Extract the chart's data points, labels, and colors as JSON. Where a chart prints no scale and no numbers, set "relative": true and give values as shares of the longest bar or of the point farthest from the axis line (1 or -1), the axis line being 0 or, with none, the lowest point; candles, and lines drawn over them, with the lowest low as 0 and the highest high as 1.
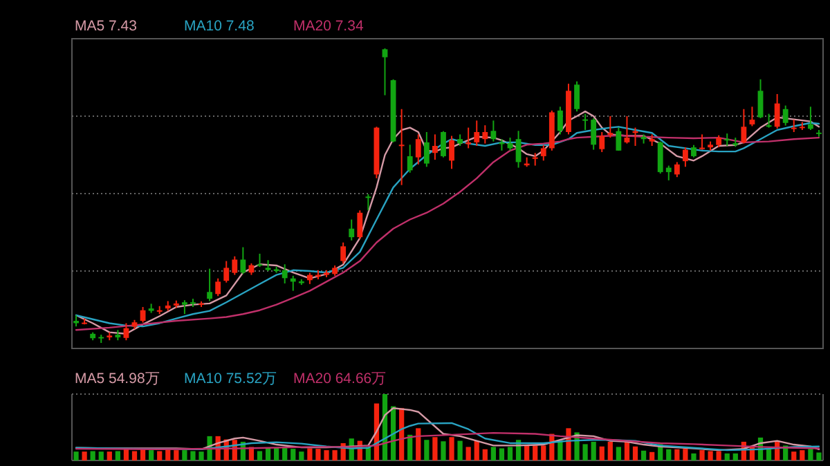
{
  "chart_data": [
    {
      "type": "candlestick",
      "relative": true,
      "grid": "y",
      "legend": "top left",
      "categories": [
        null,
        null,
        null,
        null,
        null,
        null,
        null,
        null,
        null,
        null,
        null,
        null,
        null,
        null,
        null,
        null,
        null,
        null,
        null,
        null,
        null,
        null,
        null,
        null,
        null,
        null,
        null,
        null,
        null,
        null,
        null,
        null,
        null,
        null,
        null,
        null,
        null,
        null,
        null,
        null,
        null,
        null,
        null,
        null,
        null,
        null,
        null,
        null,
        null,
        null,
        null,
        null,
        null,
        null,
        null,
        null,
        null,
        null,
        null,
        null,
        null,
        null,
        null,
        null,
        null,
        null,
        null,
        null,
        null,
        null,
        null,
        null,
        null,
        null,
        null,
        null,
        null,
        null,
        null,
        null,
        null,
        null,
        null,
        null,
        null,
        null,
        null,
        null,
        null,
        null
      ],
      "ohlc": [
        [
          0.075,
          0.094,
          0.056,
          0.067
        ],
        [
          0.066,
          0.083,
          0.063,
          0.069
        ],
        [
          0.031,
          0.036,
          0.009,
          0.016
        ],
        [
          0.02,
          0.028,
          0,
          0.016
        ],
        [
          0.019,
          0.036,
          0.009,
          0.025
        ],
        [
          0.028,
          0.044,
          0.009,
          0.019
        ],
        [
          0.017,
          0.067,
          0.009,
          0.05
        ],
        [
          0.055,
          0.078,
          0.047,
          0.07
        ],
        [
          0.075,
          0.122,
          0.069,
          0.111
        ],
        [
          0.117,
          0.133,
          0.102,
          0.109
        ],
        [
          0.106,
          0.125,
          0.098,
          0.111
        ],
        [
          0.117,
          0.142,
          0.109,
          0.127
        ],
        [
          0.127,
          0.144,
          0.119,
          0.134
        ],
        [
          0.138,
          0.145,
          0.098,
          0.13
        ],
        [
          0.138,
          0.15,
          0.122,
          0.133
        ],
        [
          0.13,
          0.141,
          0.122,
          0.134
        ],
        [
          0.173,
          0.252,
          0.142,
          0.15
        ],
        [
          0.166,
          0.219,
          0.159,
          0.208
        ],
        [
          0.211,
          0.278,
          0.205,
          0.255
        ],
        [
          0.238,
          0.294,
          0.231,
          0.283
        ],
        [
          0.283,
          0.325,
          0.234,
          0.239
        ],
        [
          0.239,
          0.27,
          0.231,
          0.264
        ],
        [
          0.267,
          0.303,
          0.258,
          0.263
        ],
        [
          0.255,
          0.281,
          0.244,
          0.248
        ],
        [
          0.25,
          0.259,
          0.238,
          0.244
        ],
        [
          0.247,
          0.267,
          0.202,
          0.22
        ],
        [
          0.219,
          0.228,
          0.177,
          0.208
        ],
        [
          0.209,
          0.216,
          0.197,
          0.203
        ],
        [
          0.213,
          0.238,
          0.2,
          0.231
        ],
        [
          0.225,
          0.247,
          0.216,
          0.231
        ],
        [
          0.231,
          0.247,
          0.223,
          0.239
        ],
        [
          0.234,
          0.263,
          0.228,
          0.255
        ],
        [
          0.278,
          0.341,
          0.27,
          0.328
        ],
        [
          0.388,
          0.419,
          0.348,
          0.359
        ],
        [
          0.359,
          0.45,
          0.353,
          0.442
        ],
        [
          0.497,
          0.505,
          0.45,
          0.494
        ],
        [
          0.572,
          0.734,
          0.559,
          0.731
        ],
        [
          0.997,
          1,
          0.841,
          0.97
        ],
        [
          0.892,
          0.895,
          0.681,
          0.684
        ],
        [
          0.669,
          0.794,
          0.536,
          0.673
        ],
        [
          0.634,
          0.673,
          0.578,
          0.586
        ],
        [
          0.63,
          0.708,
          0.606,
          0.692
        ],
        [
          0.681,
          0.716,
          0.598,
          0.609
        ],
        [
          0.645,
          0.708,
          0.622,
          0.669
        ],
        [
          0.716,
          0.719,
          0.63,
          0.634
        ],
        [
          0.619,
          0.703,
          0.591,
          0.688
        ],
        [
          0.692,
          0.708,
          0.669,
          0.677
        ],
        [
          0.675,
          0.731,
          0.661,
          0.681
        ],
        [
          0.681,
          0.755,
          0.669,
          0.716
        ],
        [
          0.692,
          0.739,
          0.677,
          0.716
        ],
        [
          0.72,
          0.755,
          0.684,
          0.692
        ],
        [
          0.681,
          0.692,
          0.653,
          0.675
        ],
        [
          0.678,
          0.697,
          0.653,
          0.661
        ],
        [
          0.692,
          0.72,
          0.595,
          0.614
        ],
        [
          0.603,
          0.63,
          0.598,
          0.609
        ],
        [
          0.625,
          0.645,
          0.602,
          0.63
        ],
        [
          0.634,
          0.672,
          0.619,
          0.661
        ],
        [
          0.661,
          0.789,
          0.653,
          0.783
        ],
        [
          0.789,
          0.802,
          0.708,
          0.72
        ],
        [
          0.716,
          0.88,
          0.708,
          0.856
        ],
        [
          0.877,
          0.888,
          0.786,
          0.794
        ],
        [
          0.759,
          0.778,
          0.723,
          0.756
        ],
        [
          0.758,
          0.763,
          0.656,
          0.673
        ],
        [
          0.658,
          0.716,
          0.648,
          0.703
        ],
        [
          0.706,
          0.77,
          0.697,
          0.713
        ],
        [
          0.719,
          0.731,
          0.653,
          0.653
        ],
        [
          0.681,
          0.77,
          0.677,
          0.697
        ],
        [
          0.713,
          0.731,
          0.669,
          0.719
        ],
        [
          0.7,
          0.708,
          0.677,
          0.692
        ],
        [
          0.684,
          0.708,
          0.669,
          0.692
        ],
        [
          0.681,
          0.684,
          0.575,
          0.58
        ],
        [
          0.595,
          0.602,
          0.552,
          0.58
        ],
        [
          0.572,
          0.614,
          0.563,
          0.606
        ],
        [
          0.617,
          0.664,
          0.598,
          0.656
        ],
        [
          0.664,
          0.672,
          0.63,
          0.634
        ],
        [
          0.658,
          0.708,
          0.656,
          0.663
        ],
        [
          0.664,
          0.684,
          0.653,
          0.673
        ],
        [
          0.672,
          0.705,
          0.664,
          0.697
        ],
        [
          0.692,
          0.711,
          0.669,
          0.688
        ],
        [
          0.678,
          0.697,
          0.666,
          0.672
        ],
        [
          0.681,
          0.794,
          0.677,
          0.734
        ],
        [
          0.742,
          0.802,
          0.736,
          0.758
        ],
        [
          0.856,
          0.895,
          0.763,
          0.766
        ],
        [
          0.739,
          0.778,
          0.731,
          0.734
        ],
        [
          0.734,
          0.845,
          0.728,
          0.813
        ],
        [
          0.794,
          0.806,
          0.738,
          0.747
        ],
        [
          0.727,
          0.758,
          0.716,
          0.731
        ],
        [
          0.73,
          0.75,
          0.723,
          0.734
        ],
        [
          0.742,
          0.802,
          0.723,
          0.727
        ],
        [
          0.714,
          0.723,
          0.7,
          0.711
        ]
      ],
      "series": [
        {
          "name": "MA5 7.43",
          "type": "line",
          "color": "#d59aa6",
          "values": [
            0.094,
            null,
            0.067,
            null,
            0.036,
            null,
            0.031,
            null,
            0.063,
            null,
            0.091,
            null,
            0.122,
            null,
            0.13,
            null,
            0.134,
            null,
            0.161,
            null,
            0.239,
            null,
            0.267,
            null,
            0.263,
            null,
            0.239,
            null,
            0.219,
            null,
            0.234,
            null,
            0.266,
            null,
            0.356,
            null,
            0.528,
            0.638,
            0.692,
            0.723,
            0.731,
            0.716,
            0.653,
            0.65,
            0.661,
            0.664,
            0.677,
            null,
            0.7,
            null,
            0.697,
            0.688,
            null,
            0.661,
            0.641,
            0.634,
            0.653,
            null,
            0.716,
            0.755,
            0.77,
            0.786,
            0.77,
            0.731,
            0.708,
            null,
            0.703,
            null,
            0.703,
            null,
            0.677,
            null,
            0.634,
            null,
            0.619,
            0.634,
            null,
            0.669,
            null,
            0.672,
            0.681,
            null,
            0.731,
            null,
            0.766,
            null,
            0.759,
            null,
            0.752,
            0.734
          ]
        },
        {
          "name": "MA10 7.48",
          "type": "line",
          "color": "#29a3c2",
          "values": [
            0.094,
            null,
            null,
            null,
            0.067,
            null,
            0.059,
            null,
            0.056,
            null,
            0.067,
            null,
            0.083,
            null,
            0.098,
            null,
            0.109,
            null,
            0.138,
            null,
            0.169,
            null,
            0.2,
            null,
            0.231,
            null,
            0.247,
            null,
            0.244,
            null,
            0.239,
            null,
            0.255,
            null,
            0.309,
            null,
            0.419,
            null,
            0.528,
            null,
            0.591,
            null,
            0.638,
            null,
            0.677,
            0.692,
            null,
            0.677,
            null,
            0.669,
            null,
            0.681,
            null,
            0.681,
            null,
            0.672,
            null,
            0.672,
            null,
            0.692,
            0.713,
            null,
            0.723,
            null,
            0.731,
            0.734,
            null,
            0.723,
            null,
            0.713,
            null,
            0.669,
            null,
            0.661,
            null,
            0.653,
            null,
            0.65,
            null,
            0.65,
            0.661,
            null,
            0.692,
            null,
            0.723,
            null,
            0.736,
            null,
            0.747,
            0.744
          ]
        },
        {
          "name": "MA20 7.34",
          "type": "line",
          "color": "#c0306a",
          "values": [
            0.044,
            null,
            null,
            null,
            0.052,
            null,
            null,
            null,
            0.063,
            null,
            null,
            null,
            0.075,
            null,
            null,
            null,
            0.083,
            null,
            0.088,
            null,
            0.098,
            null,
            0.111,
            null,
            0.13,
            null,
            0.153,
            null,
            0.177,
            null,
            0.208,
            null,
            0.239,
            null,
            0.278,
            null,
            0.341,
            null,
            0.388,
            null,
            0.419,
            null,
            0.442,
            null,
            0.473,
            null,
            0.513,
            null,
            0.559,
            null,
            0.614,
            null,
            0.653,
            null,
            0.673,
            null,
            0.677,
            null,
            0.684,
            0.692,
            0.697,
            null,
            0.7,
            null,
            null,
            0.705,
            null,
            null,
            0.7,
            null,
            null,
            0.697,
            null,
            null,
            0.695,
            null,
            null,
            0.697,
            null,
            null,
            0.681,
            null,
            null,
            0.684,
            null,
            null,
            0.692,
            null,
            null,
            0.697
          ]
        }
      ]
    },
    {
      "type": "bar",
      "relative": true,
      "legend": "top left",
      "categories": [
        null,
        null,
        null,
        null,
        null,
        null,
        null,
        null,
        null,
        null,
        null,
        null,
        null,
        null,
        null,
        null,
        null,
        null,
        null,
        null,
        null,
        null,
        null,
        null,
        null,
        null,
        null,
        null,
        null,
        null,
        null,
        null,
        null,
        null,
        null,
        null,
        null,
        null,
        null,
        null,
        null,
        null,
        null,
        null,
        null,
        null,
        null,
        null,
        null,
        null,
        null,
        null,
        null,
        null,
        null,
        null,
        null,
        null,
        null,
        null,
        null,
        null,
        null,
        null,
        null,
        null,
        null,
        null,
        null,
        null,
        null,
        null,
        null,
        null,
        null,
        null,
        null,
        null,
        null,
        null,
        null,
        null,
        null,
        null,
        null,
        null,
        null,
        null,
        null,
        null
      ],
      "series": [
        {
          "values": [
            0.134,
            0.134,
            0.141,
            0.134,
            0.134,
            0.141,
            0.176,
            0.141,
            0.183,
            0.155,
            0.141,
            0.183,
            0.155,
            0.155,
            0.141,
            0.134,
            0.366,
            0.366,
            0.317,
            0.31,
            0.282,
            0.204,
            0.141,
            0.19,
            0.19,
            0.19,
            0.176,
            0.134,
            0.183,
            0.176,
            0.155,
            0.155,
            0.261,
            0.331,
            0.296,
            0.204,
            0.859,
            1,
            0.817,
            0.789,
            0.387,
            0.486,
            0.31,
            0.352,
            0.289,
            0.352,
            0.296,
            0.204,
            0.296,
            0.169,
            0.204,
            0.183,
            0.204,
            0.31,
            0.239,
            0.225,
            0.225,
            0.401,
            0.296,
            0.486,
            0.423,
            0.246,
            0.282,
            0.211,
            0.282,
            0.204,
            0.282,
            0.211,
            0.148,
            0.127,
            0.246,
            0.169,
            0.169,
            0.176,
            0.106,
            0.155,
            0.141,
            0.141,
            0.106,
            0.106,
            0.282,
            0.218,
            0.345,
            0.183,
            0.296,
            0.225,
            0.134,
            0.155,
            0.176,
            0.12
          ],
          "colors": [
            "#12a512",
            "#f5230f",
            "#12a512",
            "#12a512",
            "#f5230f",
            "#12a512",
            "#f5230f",
            "#f5230f",
            "#f5230f",
            "#12a512",
            "#f5230f",
            "#f5230f",
            "#f5230f",
            "#12a512",
            "#12a512",
            "#12a512",
            "#12a512",
            "#f5230f",
            "#f5230f",
            "#f5230f",
            "#12a512",
            "#f5230f",
            "#12a512",
            "#12a512",
            "#12a512",
            "#12a512",
            "#12a512",
            "#12a512",
            "#f5230f",
            "#f5230f",
            "#f5230f",
            "#f5230f",
            "#f5230f",
            "#12a512",
            "#f5230f",
            "#12a512",
            "#f5230f",
            "#12a512",
            "#12a512",
            "#f5230f",
            "#12a512",
            "#f5230f",
            "#12a512",
            "#f5230f",
            "#12a512",
            "#f5230f",
            "#12a512",
            "#f5230f",
            "#f5230f",
            "#f5230f",
            "#12a512",
            "#12a512",
            "#12a512",
            "#12a512",
            "#f5230f",
            "#f5230f",
            "#f5230f",
            "#f5230f",
            "#12a512",
            "#f5230f",
            "#12a512",
            "#12a512",
            "#12a512",
            "#f5230f",
            "#f5230f",
            "#12a512",
            "#f5230f",
            "#f5230f",
            "#12a512",
            "#f5230f",
            "#12a512",
            "#12a512",
            "#f5230f",
            "#f5230f",
            "#12a512",
            "#f5230f",
            "#f5230f",
            "#f5230f",
            "#12a512",
            "#12a512",
            "#f5230f",
            "#f5230f",
            "#12a512",
            "#12a512",
            "#f5230f",
            "#12a512",
            "#f5230f",
            "#f5230f",
            "#12a512",
            "#12a512"
          ]
        },
        {
          "name": "MA5 54.98万",
          "type": "line",
          "color": "#d59aa6",
          "values": [
            0.19,
            null,
            null,
            null,
            0.183,
            null,
            null,
            null,
            0.183,
            null,
            null,
            null,
            0.183,
            null,
            null,
            0.169,
            null,
            0.261,
            null,
            0.331,
            0.345,
            null,
            0.296,
            null,
            0.239,
            null,
            null,
            0.197,
            null,
            null,
            0.197,
            null,
            null,
            0.211,
            null,
            0.225,
            0.437,
            0.683,
            0.789,
            0.775,
            0.761,
            0.732,
            null,
            null,
            0.401,
            null,
            0.366,
            null,
            0.296,
            null,
            0.225,
            null,
            null,
            0.225,
            null,
            null,
            0.239,
            null,
            0.31,
            null,
            0.38,
            null,
            0.366,
            null,
            0.296,
            null,
            0.282,
            null,
            0.239,
            null,
            0.211,
            null,
            null,
            0.19,
            null,
            null,
            null,
            0.155,
            null,
            null,
            0.176,
            null,
            0.261,
            null,
            0.296,
            null,
            0.239,
            null,
            0.211,
            0.169
          ]
        },
        {
          "name": "MA10 75.52万",
          "type": "line",
          "color": "#29a3c2",
          "values": [
            0.19,
            null,
            null,
            null,
            null,
            null,
            null,
            null,
            0.176,
            null,
            null,
            null,
            null,
            null,
            null,
            0.169,
            null,
            null,
            0.211,
            null,
            null,
            0.261,
            null,
            null,
            0.275,
            null,
            null,
            0.254,
            null,
            null,
            0.211,
            null,
            null,
            0.183,
            null,
            0.19,
            null,
            0.331,
            null,
            0.472,
            0.521,
            0.556,
            null,
            null,
            null,
            0.563,
            null,
            0.472,
            null,
            0.331,
            null,
            null,
            0.261,
            null,
            null,
            null,
            0.261,
            null,
            null,
            0.296,
            null,
            null,
            0.31,
            null,
            0.31,
            null,
            null,
            0.296,
            null,
            null,
            0.225,
            null,
            null,
            null,
            0.19,
            null,
            null,
            null,
            0.155,
            null,
            null,
            null,
            0.169,
            null,
            null,
            null,
            0.204,
            null,
            null,
            0.211
          ]
        },
        {
          "name": "MA20 64.66万",
          "type": "line",
          "color": "#c0306a",
          "values": [
            0.176,
            null,
            null,
            null,
            null,
            null,
            null,
            null,
            null,
            null,
            0.169,
            null,
            null,
            null,
            null,
            null,
            null,
            null,
            null,
            null,
            0.183,
            null,
            null,
            null,
            null,
            null,
            null,
            null,
            0.204,
            null,
            null,
            null,
            null,
            0.204,
            null,
            null,
            0.225,
            null,
            0.296,
            null,
            0.352,
            0.366,
            null,
            null,
            null,
            0.387,
            null,
            null,
            null,
            null,
            0.415,
            null,
            null,
            null,
            null,
            0.401,
            null,
            null,
            0.366,
            null,
            null,
            null,
            0.331,
            null,
            null,
            null,
            0.296,
            null,
            null,
            null,
            0.261,
            null,
            null,
            null,
            0.246,
            null,
            null,
            null,
            0.225,
            null,
            null,
            null,
            0.204,
            null,
            null,
            null,
            0.19,
            null,
            null,
            0.183
          ]
        }
      ]
    }
  ]
}
